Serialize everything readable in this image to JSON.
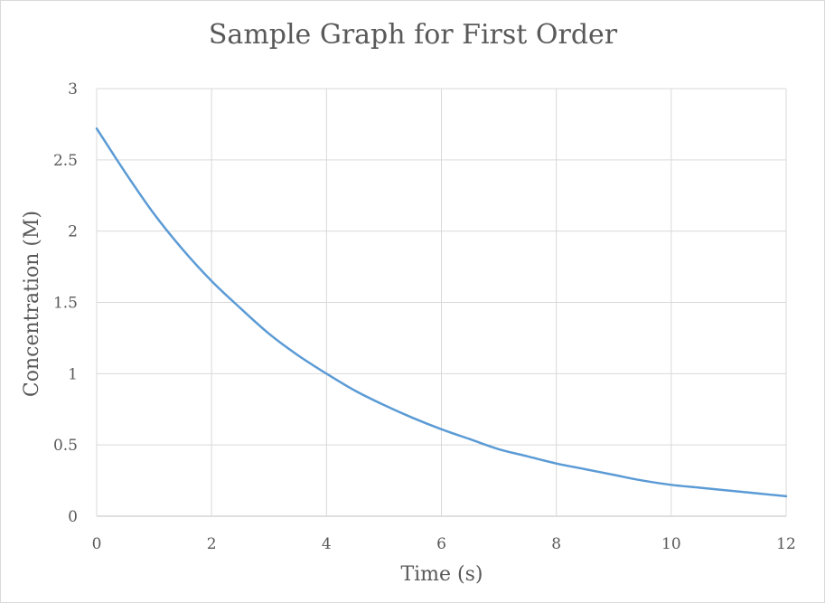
{
  "chart_data": {
    "type": "line",
    "title": "Sample Graph for First Order",
    "xlabel": "Time (s)",
    "ylabel": "Concentration (M)",
    "xlim": [
      0,
      12
    ],
    "ylim": [
      0,
      3
    ],
    "x_ticks": [
      "0",
      "2",
      "4",
      "6",
      "8",
      "10",
      "12"
    ],
    "y_ticks": [
      "0",
      "0.5",
      "1",
      "1.5",
      "2",
      "2.5",
      "3"
    ],
    "grid": true,
    "legend": "none",
    "series": [
      {
        "color": "#5b9bd5",
        "x": [
          0,
          0.5,
          1,
          1.5,
          2,
          2.5,
          3,
          3.5,
          4,
          4.5,
          5,
          5.5,
          6,
          6.5,
          7,
          7.5,
          8,
          8.5,
          9,
          9.5,
          10,
          10.5,
          11,
          11.5,
          12
        ],
        "y": [
          2.72,
          2.41,
          2.12,
          1.87,
          1.65,
          1.46,
          1.28,
          1.13,
          1.0,
          0.88,
          0.78,
          0.69,
          0.61,
          0.54,
          0.47,
          0.42,
          0.37,
          0.33,
          0.29,
          0.25,
          0.22,
          0.2,
          0.18,
          0.16,
          0.14
        ]
      }
    ]
  }
}
